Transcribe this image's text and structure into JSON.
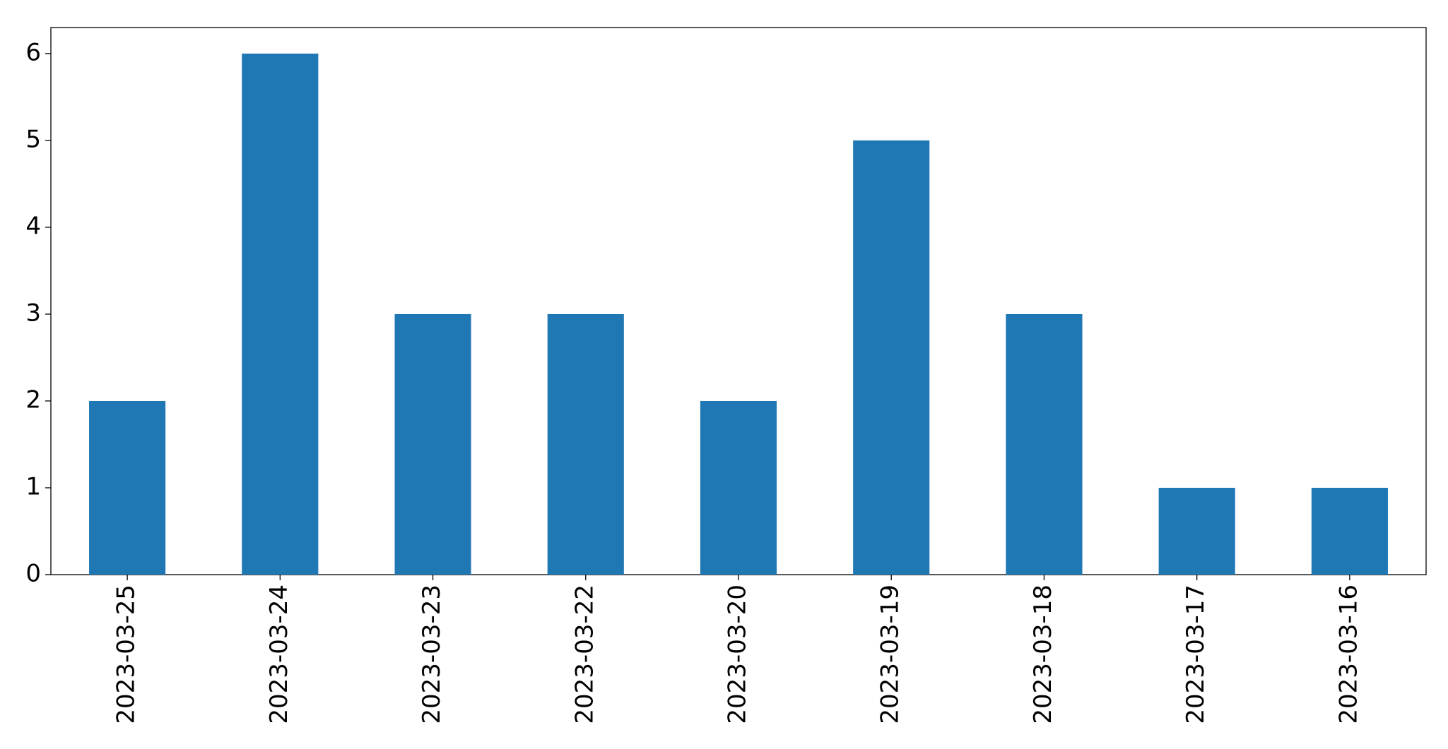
{
  "chart_data": {
    "type": "bar",
    "categories": [
      "2023-03-25",
      "2023-03-24",
      "2023-03-23",
      "2023-03-22",
      "2023-03-20",
      "2023-03-19",
      "2023-03-18",
      "2023-03-17",
      "2023-03-16"
    ],
    "values": [
      2,
      6,
      3,
      3,
      2,
      5,
      3,
      1,
      1
    ],
    "color": "#1f77b4",
    "ylim": [
      0,
      6.3
    ],
    "yticks": [
      0,
      1,
      2,
      3,
      4,
      5,
      6
    ],
    "grid": false
  }
}
